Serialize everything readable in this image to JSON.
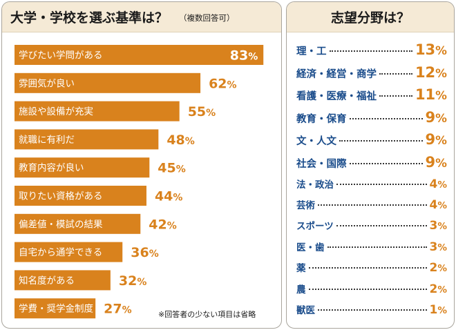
{
  "left_panel": {
    "title": "大学・学校を選ぶ基準は？",
    "note": "（複数回答可）",
    "footnote": "※回答者の少ない項目は省略"
  },
  "right_panel": {
    "title": "志望分野は？"
  },
  "colors": {
    "bar": "#d9821d",
    "bar_label": "#ffffff",
    "value_text": "#d9821d",
    "field_label": "#1a4c8b",
    "header_bg": "#f5ead6"
  },
  "chart_data": [
    {
      "type": "bar",
      "orientation": "horizontal",
      "title": "大学・学校を選ぶ基準は？",
      "subtitle": "（複数回答可）",
      "unit": "%",
      "categories": [
        "学びたい学問がある",
        "雰囲気が良い",
        "施設や設備が充実",
        "就職に有利だ",
        "教育内容が良い",
        "取りたい資格がある",
        "偏差値・模試の結果",
        "自宅から通学できる",
        "知名度がある",
        "学費・奨学金制度"
      ],
      "values": [
        83,
        62,
        55,
        48,
        45,
        44,
        42,
        36,
        32,
        27
      ],
      "xlim": [
        0,
        100
      ],
      "grid": false,
      "legend": "none"
    },
    {
      "type": "table",
      "title": "志望分野は？",
      "unit": "%",
      "categories": [
        "理・工",
        "経済・経営・商学",
        "看護・医療・福祉",
        "教育・保育",
        "文・人文",
        "社会・国際",
        "法・政治",
        "芸術",
        "スポーツ",
        "医・歯",
        "薬",
        "農",
        "獣医"
      ],
      "values": [
        13,
        12,
        11,
        9,
        9,
        9,
        4,
        4,
        3,
        3,
        2,
        2,
        1
      ]
    }
  ]
}
